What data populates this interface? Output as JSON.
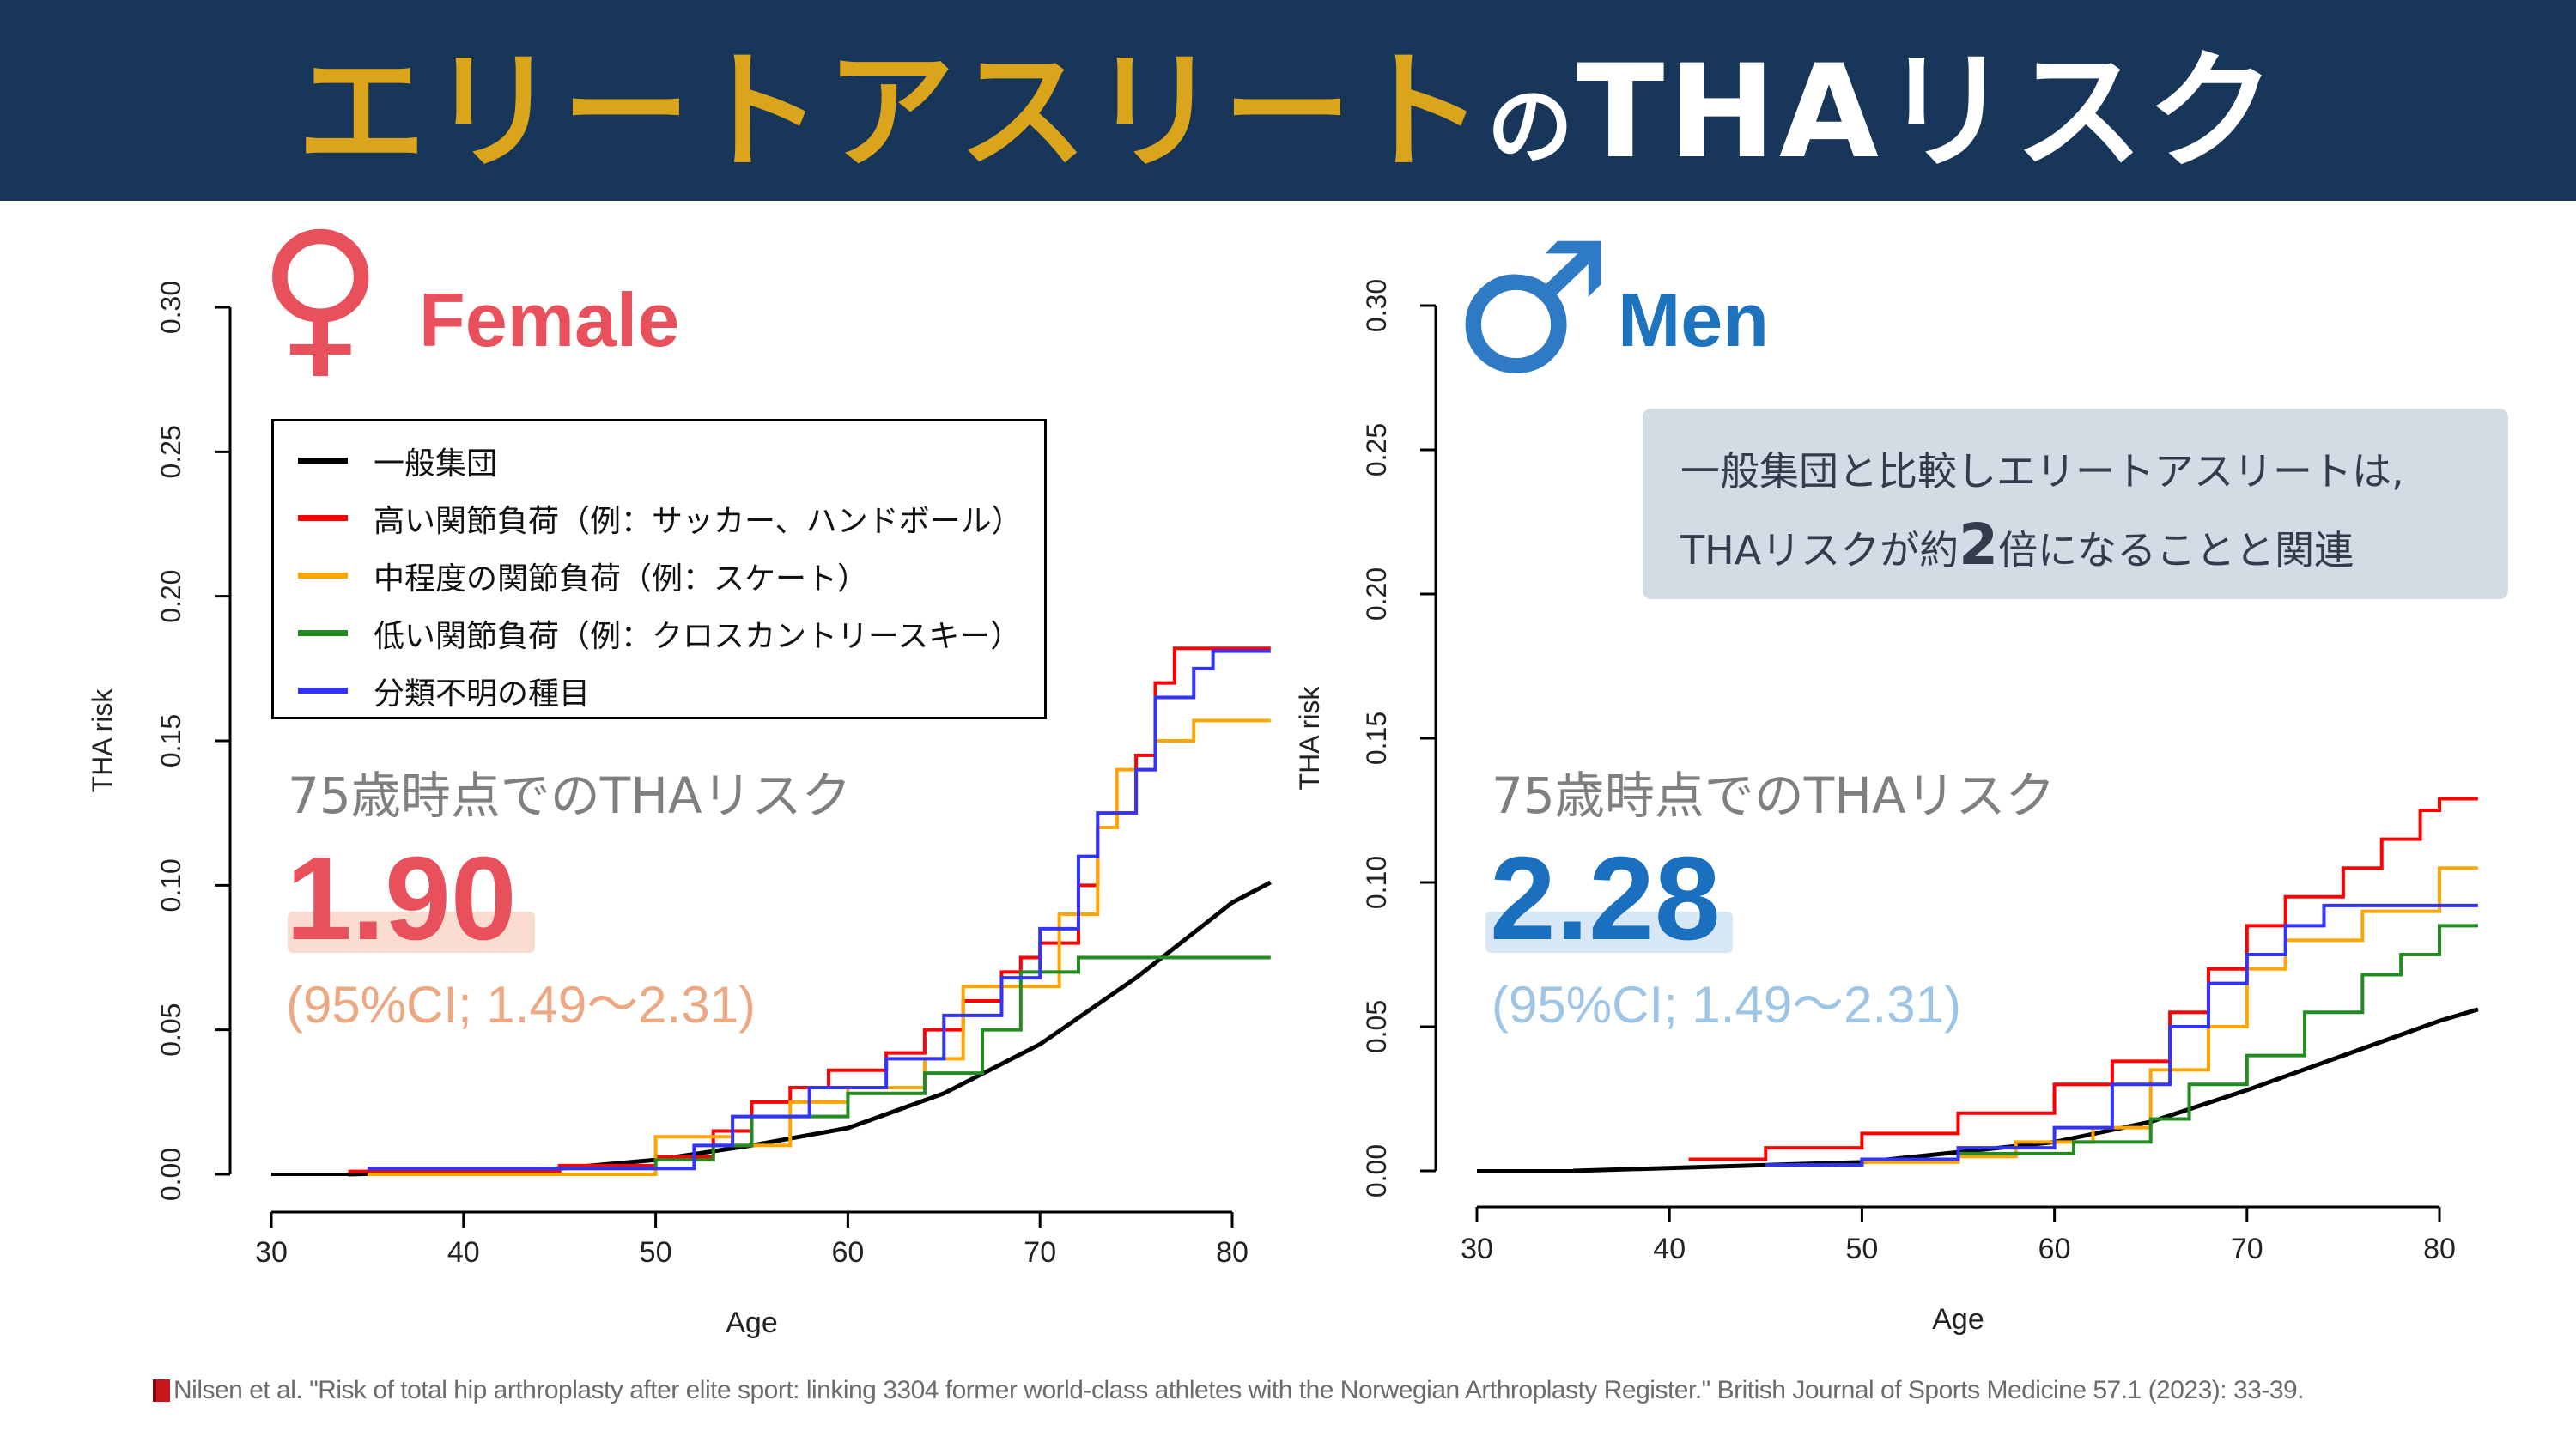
{
  "header": {
    "title_part1": "エリートアスリート",
    "title_part2": "の",
    "title_part3": "THAリスク"
  },
  "female": {
    "symbol": "♀",
    "label": "Female",
    "risk_label": "75歳時点でのTHAリスク",
    "risk_value": "1.90",
    "ci": "(95%CI; 1.49〜2.31)",
    "color": "#e8505b"
  },
  "men": {
    "symbol": "♂",
    "label": "Men",
    "risk_label": "75歳時点でのTHAリスク",
    "risk_value": "2.28",
    "ci": "(95%CI; 1.49〜2.31)",
    "color": "#1e73be"
  },
  "legend": [
    {
      "label": "一般集団",
      "color": "#000000"
    },
    {
      "label": "高い関節負荷（例：サッカー、ハンドボール）",
      "color": "#ff0000"
    },
    {
      "label": "中程度の関節負荷（例：スケート）",
      "color": "#ffa500"
    },
    {
      "label": "低い関節負荷（例：クロスカントリースキー）",
      "color": "#228b22"
    },
    {
      "label": "分類不明の種目",
      "color": "#3333ff"
    }
  ],
  "note": {
    "line1": "一般集団と比較しエリートアスリートは,",
    "line2_pre": "THAリスクが約",
    "line2_bold": "2",
    "line2_post": "倍になることと関連"
  },
  "citation": "Nilsen et al. \"Risk of total hip arthroplasty after elite sport: linking 3304 former world-class athletes with the Norwegian Arthroplasty Register.\" British Journal of Sports Medicine 57.1 (2023): 33-39.",
  "chart_data": [
    {
      "type": "line",
      "title": "Female",
      "xlabel": "Age",
      "ylabel": "THA risk",
      "xlim": [
        30,
        82
      ],
      "ylim": [
        0,
        0.3
      ],
      "xticks": [
        "30",
        "40",
        "50",
        "60",
        "70",
        "80"
      ],
      "yticks": [
        "0.00",
        "0.05",
        "0.10",
        "0.15",
        "0.20",
        "0.25",
        "0.30"
      ],
      "series": [
        {
          "name": "一般集団",
          "color": "#000000",
          "step": false,
          "points": [
            [
              34,
              0
            ],
            [
              45,
              0.002
            ],
            [
              50,
              0.005
            ],
            [
              55,
              0.01
            ],
            [
              60,
              0.016
            ],
            [
              65,
              0.028
            ],
            [
              70,
              0.045
            ],
            [
              75,
              0.068
            ],
            [
              80,
              0.094
            ],
            [
              82,
              0.101
            ]
          ]
        },
        {
          "name": "高い関節負荷",
          "color": "#ff0000",
          "step": true,
          "points": [
            [
              34,
              0.001
            ],
            [
              45,
              0.003
            ],
            [
              50,
              0.006
            ],
            [
              53,
              0.015
            ],
            [
              55,
              0.025
            ],
            [
              57,
              0.03
            ],
            [
              59,
              0.036
            ],
            [
              62,
              0.042
            ],
            [
              64,
              0.05
            ],
            [
              66,
              0.06
            ],
            [
              68,
              0.07
            ],
            [
              69,
              0.075
            ],
            [
              70,
              0.08
            ],
            [
              72,
              0.1
            ],
            [
              73,
              0.12
            ],
            [
              74,
              0.125
            ],
            [
              75,
              0.145
            ],
            [
              76,
              0.17
            ],
            [
              77,
              0.182
            ],
            [
              82,
              0.182
            ]
          ]
        },
        {
          "name": "中程度の関節負荷",
          "color": "#ffa500",
          "step": true,
          "points": [
            [
              35,
              0
            ],
            [
              50,
              0.013
            ],
            [
              54,
              0.01
            ],
            [
              57,
              0.025
            ],
            [
              60,
              0.03
            ],
            [
              64,
              0.04
            ],
            [
              66,
              0.065
            ],
            [
              69,
              0.065
            ],
            [
              71,
              0.09
            ],
            [
              73,
              0.12
            ],
            [
              74,
              0.14
            ],
            [
              76,
              0.15
            ],
            [
              78,
              0.157
            ],
            [
              82,
              0.157
            ]
          ]
        },
        {
          "name": "低い関節負荷",
          "color": "#228b22",
          "step": true,
          "points": [
            [
              35,
              0.002
            ],
            [
              50,
              0.005
            ],
            [
              53,
              0.01
            ],
            [
              55,
              0.02
            ],
            [
              60,
              0.028
            ],
            [
              64,
              0.035
            ],
            [
              67,
              0.05
            ],
            [
              69,
              0.07
            ],
            [
              72,
              0.075
            ],
            [
              82,
              0.075
            ]
          ]
        },
        {
          "name": "分類不明の種目",
          "color": "#3333ff",
          "step": true,
          "points": [
            [
              35,
              0.002
            ],
            [
              52,
              0.01
            ],
            [
              54,
              0.02
            ],
            [
              58,
              0.03
            ],
            [
              62,
              0.04
            ],
            [
              65,
              0.055
            ],
            [
              68,
              0.068
            ],
            [
              70,
              0.085
            ],
            [
              72,
              0.11
            ],
            [
              73,
              0.125
            ],
            [
              75,
              0.14
            ],
            [
              76,
              0.165
            ],
            [
              78,
              0.175
            ],
            [
              79,
              0.181
            ],
            [
              82,
              0.181
            ]
          ]
        }
      ]
    },
    {
      "type": "line",
      "title": "Men",
      "xlabel": "Age",
      "ylabel": "THA risk",
      "xlim": [
        30,
        82
      ],
      "ylim": [
        0,
        0.3
      ],
      "xticks": [
        "30",
        "40",
        "50",
        "60",
        "70",
        "80"
      ],
      "yticks": [
        "0.00",
        "0.05",
        "0.10",
        "0.15",
        "0.20",
        "0.25",
        "0.30"
      ],
      "series": [
        {
          "name": "一般集団",
          "color": "#000000",
          "step": false,
          "points": [
            [
              35,
              0
            ],
            [
              50,
              0.003
            ],
            [
              60,
              0.01
            ],
            [
              65,
              0.017
            ],
            [
              70,
              0.028
            ],
            [
              75,
              0.04
            ],
            [
              80,
              0.052
            ],
            [
              82,
              0.056
            ]
          ]
        },
        {
          "name": "高い関節負荷",
          "color": "#ff0000",
          "step": true,
          "points": [
            [
              41,
              0.004
            ],
            [
              45,
              0.008
            ],
            [
              50,
              0.013
            ],
            [
              55,
              0.02
            ],
            [
              60,
              0.03
            ],
            [
              63,
              0.038
            ],
            [
              66,
              0.055
            ],
            [
              68,
              0.07
            ],
            [
              70,
              0.085
            ],
            [
              72,
              0.095
            ],
            [
              75,
              0.105
            ],
            [
              77,
              0.115
            ],
            [
              79,
              0.125
            ],
            [
              80,
              0.129
            ],
            [
              82,
              0.129
            ]
          ]
        },
        {
          "name": "中程度の関節負荷",
          "color": "#ffa500",
          "step": true,
          "points": [
            [
              50,
              0.003
            ],
            [
              55,
              0.005
            ],
            [
              58,
              0.01
            ],
            [
              62,
              0.015
            ],
            [
              65,
              0.035
            ],
            [
              68,
              0.05
            ],
            [
              70,
              0.07
            ],
            [
              72,
              0.08
            ],
            [
              76,
              0.09
            ],
            [
              80,
              0.105
            ],
            [
              82,
              0.105
            ]
          ]
        },
        {
          "name": "低い関節負荷",
          "color": "#228b22",
          "step": true,
          "points": [
            [
              45,
              0.002
            ],
            [
              50,
              0.004
            ],
            [
              55,
              0.006
            ],
            [
              61,
              0.01
            ],
            [
              65,
              0.018
            ],
            [
              67,
              0.03
            ],
            [
              70,
              0.04
            ],
            [
              73,
              0.055
            ],
            [
              76,
              0.068
            ],
            [
              78,
              0.075
            ],
            [
              80,
              0.085
            ],
            [
              82,
              0.085
            ]
          ]
        },
        {
          "name": "分類不明の種目",
          "color": "#3333ff",
          "step": true,
          "points": [
            [
              45,
              0.002
            ],
            [
              50,
              0.004
            ],
            [
              55,
              0.008
            ],
            [
              60,
              0.015
            ],
            [
              63,
              0.03
            ],
            [
              66,
              0.05
            ],
            [
              68,
              0.065
            ],
            [
              70,
              0.075
            ],
            [
              72,
              0.085
            ],
            [
              74,
              0.092
            ],
            [
              82,
              0.092
            ]
          ]
        }
      ]
    }
  ]
}
